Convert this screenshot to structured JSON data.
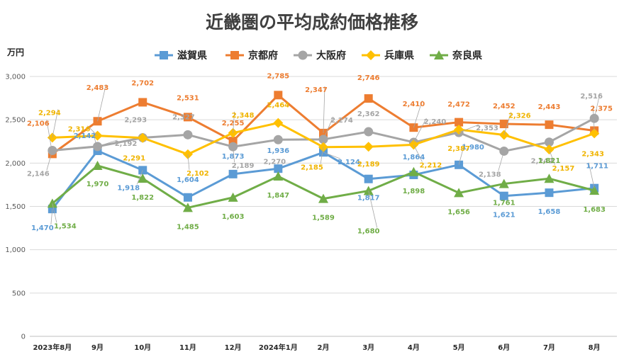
{
  "chart_data": {
    "type": "line",
    "title": "近畿圏の平均成約価格推移",
    "unit_label": "万円",
    "categories": [
      "2023年8月",
      "9月",
      "10月",
      "11月",
      "12月",
      "2024年1月",
      "2月",
      "3月",
      "4月",
      "5月",
      "6月",
      "7月",
      "8月"
    ],
    "ylim": [
      0,
      3000
    ],
    "yticks": [
      0,
      500,
      1000,
      1500,
      2000,
      2500,
      3000
    ],
    "ytick_labels": [
      "0",
      "500",
      "1,000",
      "1,500",
      "2,000",
      "2,500",
      "3,000"
    ],
    "grid": true,
    "legend_position": "top",
    "series": [
      {
        "name": "滋賀県",
        "color": "#5B9BD5",
        "marker": "square",
        "values": [
          1470,
          2142,
          1918,
          1604,
          1873,
          1936,
          2124,
          1817,
          1864,
          1980,
          1621,
          1658,
          1711
        ],
        "labels": [
          "1,470",
          "2,142",
          "1,918",
          "1,604",
          "1,873",
          "1,936",
          "2,124",
          "1,817",
          "1,864",
          "1,980",
          "1,621",
          "1,658",
          "1,711"
        ]
      },
      {
        "name": "京都府",
        "color": "#ED7D31",
        "marker": "square",
        "values": [
          2106,
          2483,
          2702,
          2531,
          2255,
          2785,
          2347,
          2746,
          2410,
          2472,
          2452,
          2443,
          2375
        ],
        "labels": [
          "2,106",
          "2,483",
          "2,702",
          "2,531",
          "2,255",
          "2,785",
          "2,347",
          "2,746",
          "2,410",
          "2,472",
          "2,452",
          "2,443",
          "2,375"
        ]
      },
      {
        "name": "大阪府",
        "color": "#A5A5A5",
        "marker": "circle",
        "values": [
          2146,
          2192,
          2293,
          2327,
          2189,
          2270,
          2274,
          2362,
          2240,
          2353,
          2138,
          2242,
          2516
        ],
        "labels": [
          "2,146",
          "2,192",
          "2,293",
          "2,327",
          "2,189",
          "2,270",
          "2,274",
          "2,362",
          "2,240",
          "2,353",
          "2,138",
          "2,242",
          "2,516"
        ]
      },
      {
        "name": "兵庫県",
        "color": "#FFC000",
        "marker": "diamond",
        "values": [
          2294,
          2316,
          2291,
          2102,
          2348,
          2464,
          2185,
          2189,
          2212,
          2387,
          2326,
          2157,
          2343
        ],
        "labels": [
          "2,294",
          "2,316",
          "2,291",
          "2,102",
          "2,348",
          "2,464",
          "2,185",
          "2,189",
          "2,212",
          "2,387",
          "2,326",
          "2,157",
          "2,343"
        ]
      },
      {
        "name": "奈良県",
        "color": "#70AD47",
        "marker": "triangle",
        "values": [
          1534,
          1970,
          1822,
          1485,
          1603,
          1847,
          1589,
          1680,
          1898,
          1656,
          1761,
          1821,
          1683
        ],
        "labels": [
          "1,534",
          "1,970",
          "1,822",
          "1,485",
          "1,603",
          "1,847",
          "1,589",
          "1,680",
          "1,898",
          "1,656",
          "1,761",
          "1,821",
          "1,683"
        ]
      }
    ]
  }
}
